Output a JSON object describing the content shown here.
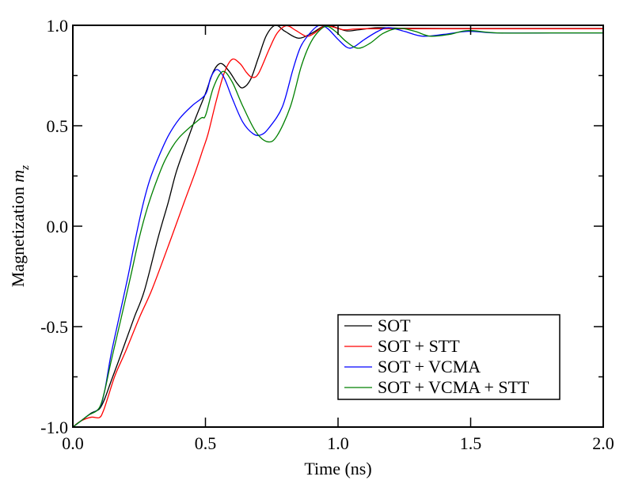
{
  "chart_data": {
    "type": "line",
    "title": "",
    "xlabel": "Time (ns)",
    "ylabel_main": "Magnetization ",
    "ylabel_symbol": "m",
    "ylabel_subscript": "z",
    "xlim": [
      0.0,
      2.0
    ],
    "ylim": [
      -1.0,
      1.0
    ],
    "x_ticks": [
      0.0,
      0.5,
      1.0,
      1.5,
      2.0
    ],
    "x_tick_labels": [
      "0.0",
      "0.5",
      "1.0",
      "1.5",
      "2.0"
    ],
    "x_minor_ticks": [],
    "y_ticks": [
      -1.0,
      -0.5,
      0.0,
      0.5,
      1.0
    ],
    "y_tick_labels": [
      "-1.0",
      "-0.5",
      "0.0",
      "0.5",
      "1.0"
    ],
    "y_minor_ticks": [
      -0.75,
      -0.25,
      0.25,
      0.75
    ],
    "grid": false,
    "legend_position": "bottom-right",
    "series": [
      {
        "name": "SOT",
        "color": "#000000",
        "x": [
          0.0,
          0.03,
          0.07,
          0.1,
          0.12,
          0.143,
          0.17,
          0.2,
          0.233,
          0.27,
          0.322,
          0.36,
          0.39,
          0.43,
          0.462,
          0.5,
          0.53,
          0.558,
          0.59,
          0.62,
          0.641,
          0.67,
          0.7,
          0.73,
          0.764,
          0.8,
          0.85,
          0.9,
          0.954,
          1.0,
          1.034,
          1.08,
          1.15,
          1.25,
          1.4,
          1.6,
          1.8,
          2.0
        ],
        "y": [
          -1.0,
          -0.97,
          -0.93,
          -0.91,
          -0.86,
          -0.776,
          -0.68,
          -0.57,
          -0.449,
          -0.32,
          -0.055,
          0.12,
          0.27,
          0.42,
          0.535,
          0.66,
          0.77,
          0.81,
          0.77,
          0.71,
          0.689,
          0.73,
          0.84,
          0.95,
          1.0,
          0.97,
          0.936,
          0.96,
          1.0,
          0.985,
          0.972,
          0.978,
          0.988,
          0.985,
          0.984,
          0.984,
          0.984,
          0.984
        ]
      },
      {
        "name": "SOT + STT",
        "color": "#ff0000",
        "x": [
          0.0,
          0.03,
          0.069,
          0.1,
          0.115,
          0.133,
          0.16,
          0.2,
          0.253,
          0.3,
          0.372,
          0.42,
          0.462,
          0.49,
          0.51,
          0.54,
          0.57,
          0.6,
          0.63,
          0.655,
          0.676,
          0.7,
          0.74,
          0.77,
          0.805,
          0.84,
          0.88,
          0.91,
          0.95,
          0.985,
          1.02,
          1.06,
          1.1,
          1.2,
          1.4,
          1.6,
          1.8,
          2.0
        ],
        "y": [
          -1.0,
          -0.97,
          -0.951,
          -0.953,
          -0.92,
          -0.849,
          -0.74,
          -0.62,
          -0.449,
          -0.31,
          -0.055,
          0.12,
          0.27,
          0.38,
          0.46,
          0.62,
          0.76,
          0.83,
          0.81,
          0.765,
          0.741,
          0.76,
          0.88,
          0.96,
          0.998,
          0.975,
          0.946,
          0.96,
          0.998,
          0.99,
          0.978,
          0.981,
          0.983,
          0.983,
          0.983,
          0.983,
          0.983,
          0.983
        ]
      },
      {
        "name": "SOT + VCMA",
        "color": "#0000ff",
        "x": [
          0.0,
          0.03,
          0.06,
          0.1,
          0.12,
          0.143,
          0.17,
          0.208,
          0.235,
          0.263,
          0.29,
          0.322,
          0.36,
          0.402,
          0.45,
          0.5,
          0.52,
          0.543,
          0.57,
          0.6,
          0.64,
          0.68,
          0.71,
          0.74,
          0.79,
          0.83,
          0.86,
          0.9,
          0.93,
          0.96,
          1.0,
          1.034,
          1.059,
          1.1,
          1.15,
          1.19,
          1.25,
          1.317,
          1.4,
          1.49,
          1.6,
          1.8,
          2.0
        ],
        "y": [
          -1.0,
          -0.97,
          -0.94,
          -0.905,
          -0.82,
          -0.646,
          -0.48,
          -0.25,
          -0.07,
          0.1,
          0.23,
          0.34,
          0.45,
          0.535,
          0.6,
          0.656,
          0.74,
          0.78,
          0.74,
          0.64,
          0.52,
          0.46,
          0.455,
          0.49,
          0.594,
          0.78,
          0.896,
          0.97,
          1.0,
          0.985,
          0.93,
          0.89,
          0.892,
          0.93,
          0.97,
          0.988,
          0.97,
          0.946,
          0.955,
          0.97,
          0.962,
          0.962,
          0.962
        ]
      },
      {
        "name": "SOT + VCMA + STT",
        "color": "#008000",
        "x": [
          0.0,
          0.03,
          0.06,
          0.098,
          0.12,
          0.143,
          0.18,
          0.218,
          0.25,
          0.283,
          0.32,
          0.352,
          0.4,
          0.48,
          0.5,
          0.53,
          0.565,
          0.6,
          0.64,
          0.69,
          0.735,
          0.77,
          0.82,
          0.86,
          0.89,
          0.92,
          0.955,
          0.99,
          1.03,
          1.074,
          1.12,
          1.17,
          1.228,
          1.29,
          1.347,
          1.42,
          1.49,
          1.6,
          1.8,
          2.0
        ],
        "y": [
          -1.0,
          -0.97,
          -0.94,
          -0.908,
          -0.82,
          -0.68,
          -0.47,
          -0.25,
          -0.06,
          0.1,
          0.24,
          0.34,
          0.44,
          0.535,
          0.55,
          0.69,
          0.77,
          0.72,
          0.6,
          0.47,
          0.42,
          0.45,
          0.594,
          0.79,
          0.896,
          0.96,
          0.995,
          0.97,
          0.92,
          0.886,
          0.91,
          0.96,
          0.985,
          0.97,
          0.946,
          0.955,
          0.974,
          0.962,
          0.962,
          0.962
        ]
      }
    ]
  }
}
